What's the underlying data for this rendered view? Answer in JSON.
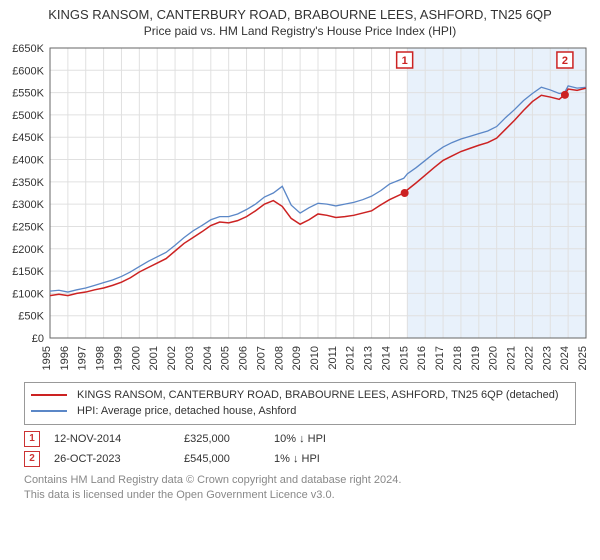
{
  "title_line1": "KINGS RANSOM, CANTERBURY ROAD, BRABOURNE LEES, ASHFORD, TN25 6QP",
  "title_line2": "Price paid vs. HM Land Registry's House Price Index (HPI)",
  "chart": {
    "type": "line",
    "background_color": "#ffffff",
    "grid_color": "#e0e0e0",
    "axis_color": "#666666",
    "tick_font_size": 11,
    "x": {
      "min": 1995,
      "max": 2025,
      "step": 1,
      "label_rotation": -90
    },
    "y": {
      "min": 0,
      "max": 650000,
      "step": 50000,
      "prefix": "£",
      "suffix_k": true
    },
    "highlight_band": {
      "from": 2015,
      "to": 2025,
      "fill": "#e8f1fb"
    },
    "series": [
      {
        "id": "price_paid",
        "label": "KINGS RANSOM, CANTERBURY ROAD, BRABOURNE LEES, ASHFORD, TN25 6QP (detached)",
        "color": "#cc2222",
        "line_width": 1.5,
        "points": [
          [
            1995,
            95000
          ],
          [
            1995.5,
            98000
          ],
          [
            1996,
            95000
          ],
          [
            1996.5,
            100000
          ],
          [
            1997,
            103000
          ],
          [
            1997.5,
            108000
          ],
          [
            1998,
            112000
          ],
          [
            1998.5,
            118000
          ],
          [
            1999,
            125000
          ],
          [
            1999.5,
            135000
          ],
          [
            2000,
            148000
          ],
          [
            2000.5,
            158000
          ],
          [
            2001,
            168000
          ],
          [
            2001.5,
            178000
          ],
          [
            2002,
            195000
          ],
          [
            2002.5,
            212000
          ],
          [
            2003,
            225000
          ],
          [
            2003.5,
            238000
          ],
          [
            2004,
            252000
          ],
          [
            2004.5,
            260000
          ],
          [
            2005,
            258000
          ],
          [
            2005.5,
            263000
          ],
          [
            2006,
            272000
          ],
          [
            2006.5,
            285000
          ],
          [
            2007,
            300000
          ],
          [
            2007.5,
            308000
          ],
          [
            2008,
            295000
          ],
          [
            2008.5,
            268000
          ],
          [
            2009,
            255000
          ],
          [
            2009.5,
            265000
          ],
          [
            2010,
            278000
          ],
          [
            2010.5,
            275000
          ],
          [
            2011,
            270000
          ],
          [
            2011.5,
            272000
          ],
          [
            2012,
            275000
          ],
          [
            2012.5,
            280000
          ],
          [
            2013,
            285000
          ],
          [
            2013.5,
            298000
          ],
          [
            2014,
            310000
          ],
          [
            2014.8,
            325000
          ],
          [
            2015,
            332000
          ],
          [
            2015.5,
            348000
          ],
          [
            2016,
            365000
          ],
          [
            2016.5,
            382000
          ],
          [
            2017,
            398000
          ],
          [
            2017.5,
            408000
          ],
          [
            2018,
            418000
          ],
          [
            2018.5,
            425000
          ],
          [
            2019,
            432000
          ],
          [
            2019.5,
            438000
          ],
          [
            2020,
            448000
          ],
          [
            2020.5,
            468000
          ],
          [
            2021,
            488000
          ],
          [
            2021.5,
            510000
          ],
          [
            2022,
            530000
          ],
          [
            2022.5,
            544000
          ],
          [
            2023,
            540000
          ],
          [
            2023.5,
            535000
          ],
          [
            2023.8,
            545000
          ],
          [
            2024,
            558000
          ],
          [
            2024.5,
            555000
          ],
          [
            2025,
            560000
          ]
        ]
      },
      {
        "id": "hpi",
        "label": "HPI: Average price, detached house, Ashford",
        "color": "#5b87c7",
        "line_width": 1.3,
        "points": [
          [
            1995,
            105000
          ],
          [
            1995.5,
            107000
          ],
          [
            1996,
            103000
          ],
          [
            1996.5,
            108000
          ],
          [
            1997,
            112000
          ],
          [
            1997.5,
            118000
          ],
          [
            1998,
            124000
          ],
          [
            1998.5,
            130000
          ],
          [
            1999,
            138000
          ],
          [
            1999.5,
            148000
          ],
          [
            2000,
            160000
          ],
          [
            2000.5,
            172000
          ],
          [
            2001,
            182000
          ],
          [
            2001.5,
            192000
          ],
          [
            2002,
            208000
          ],
          [
            2002.5,
            225000
          ],
          [
            2003,
            240000
          ],
          [
            2003.5,
            252000
          ],
          [
            2004,
            265000
          ],
          [
            2004.5,
            272000
          ],
          [
            2005,
            272000
          ],
          [
            2005.5,
            278000
          ],
          [
            2006,
            288000
          ],
          [
            2006.5,
            300000
          ],
          [
            2007,
            316000
          ],
          [
            2007.5,
            325000
          ],
          [
            2008,
            340000
          ],
          [
            2008.5,
            298000
          ],
          [
            2009,
            280000
          ],
          [
            2009.5,
            292000
          ],
          [
            2010,
            302000
          ],
          [
            2010.5,
            300000
          ],
          [
            2011,
            296000
          ],
          [
            2011.5,
            300000
          ],
          [
            2012,
            304000
          ],
          [
            2012.5,
            310000
          ],
          [
            2013,
            318000
          ],
          [
            2013.5,
            330000
          ],
          [
            2014,
            345000
          ],
          [
            2014.8,
            358000
          ],
          [
            2015,
            368000
          ],
          [
            2015.5,
            382000
          ],
          [
            2016,
            398000
          ],
          [
            2016.5,
            414000
          ],
          [
            2017,
            428000
          ],
          [
            2017.5,
            438000
          ],
          [
            2018,
            446000
          ],
          [
            2018.5,
            452000
          ],
          [
            2019,
            458000
          ],
          [
            2019.5,
            464000
          ],
          [
            2020,
            474000
          ],
          [
            2020.5,
            494000
          ],
          [
            2021,
            512000
          ],
          [
            2021.5,
            532000
          ],
          [
            2022,
            548000
          ],
          [
            2022.5,
            562000
          ],
          [
            2023,
            556000
          ],
          [
            2023.5,
            548000
          ],
          [
            2023.8,
            550000
          ],
          [
            2024,
            565000
          ],
          [
            2024.5,
            560000
          ],
          [
            2025,
            562000
          ]
        ]
      }
    ],
    "markers": [
      {
        "n": "1",
        "x": 2014.85,
        "y": 325000,
        "color": "#cc2222"
      },
      {
        "n": "2",
        "x": 2023.82,
        "y": 545000,
        "color": "#cc2222"
      }
    ]
  },
  "transactions": [
    {
      "n": "1",
      "date": "12-NOV-2014",
      "price": "£325,000",
      "rel": "10% ↓ HPI"
    },
    {
      "n": "2",
      "date": "26-OCT-2023",
      "price": "£545,000",
      "rel": "1% ↓ HPI"
    }
  ],
  "license_line1": "Contains HM Land Registry data © Crown copyright and database right 2024.",
  "license_line2": "This data is licensed under the Open Government Licence v3.0."
}
